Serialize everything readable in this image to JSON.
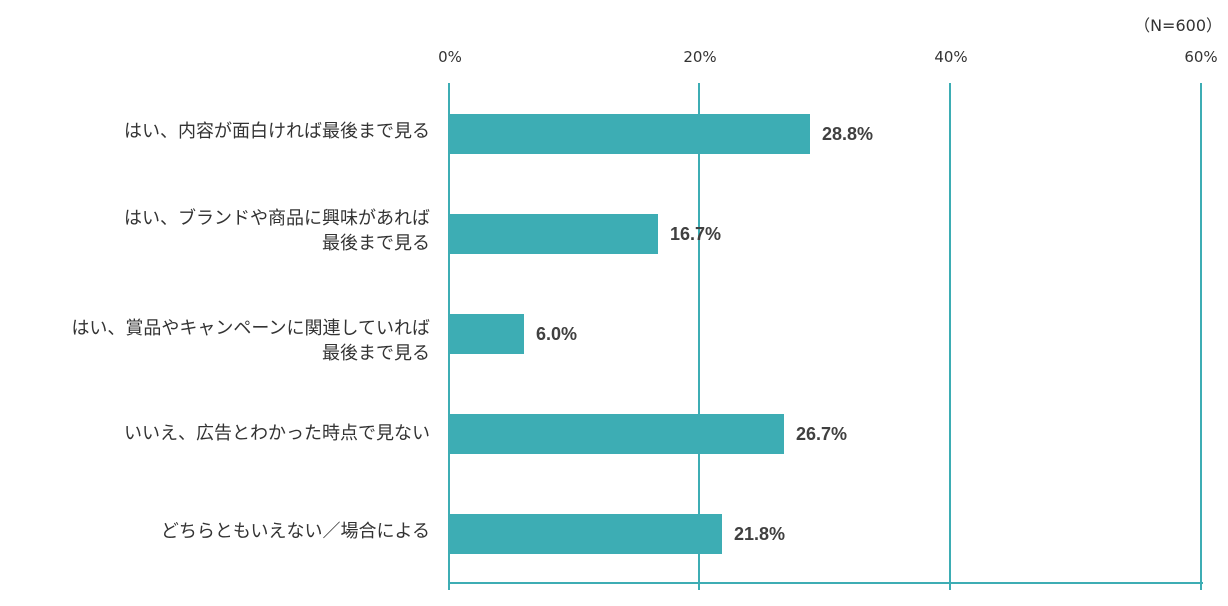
{
  "chart_data": {
    "type": "bar",
    "orientation": "horizontal",
    "title": "",
    "note": "（N=600）",
    "xlabel": "",
    "ylabel": "",
    "xlim": [
      0,
      60
    ],
    "x_ticks": [
      "0%",
      "20%",
      "40%",
      "60%"
    ],
    "grid": true,
    "legend": null,
    "bar_color": "#3DADB4",
    "categories": [
      "はい、内容が面白ければ最後まで見る",
      "はい、ブランドや商品に興味があれば最後まで見る",
      "はい、賞品やキャンペーンに関連していれば最後まで見る",
      "いいえ、広告とわかった時点で見ない",
      "どちらともいえない／場合による"
    ],
    "values": [
      28.8,
      16.7,
      6.0,
      26.7,
      21.8
    ],
    "value_labels": [
      "28.8%",
      "16.7%",
      "6.0%",
      "26.7%",
      "21.8%"
    ]
  },
  "labels": [
    {
      "line1": "はい、内容が面白ければ最後まで見る",
      "line2": ""
    },
    {
      "line1": "はい、ブランドや商品に興味があれば",
      "line2": "最後まで見る"
    },
    {
      "line1": "はい、賞品やキャンペーンに関連していれば",
      "line2": "最後まで見る"
    },
    {
      "line1": "いいえ、広告とわかった時点で見ない",
      "line2": ""
    },
    {
      "line1": "どちらともいえない／場合による",
      "line2": ""
    }
  ]
}
